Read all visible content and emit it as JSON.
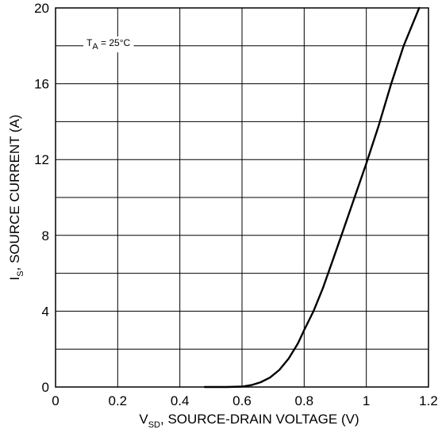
{
  "chart_data": {
    "type": "line",
    "xlabel": {
      "main": "V",
      "sub": "SD",
      "rest": ", SOURCE-DRAIN VOLTAGE (V)"
    },
    "ylabel": {
      "main": "I",
      "sub": "S",
      "rest": ", SOURCE CURRENT (A)"
    },
    "annotation": {
      "main": "T",
      "sub": "A",
      "rest": " = 25°C"
    },
    "xlim": [
      0,
      1.2
    ],
    "ylim": [
      0,
      20
    ],
    "x_ticks": [
      0,
      0.2,
      0.4,
      0.6,
      0.8,
      1,
      1.2
    ],
    "x_tick_labels": [
      "0",
      "0.2",
      "0.4",
      "0.6",
      "0.8",
      "1",
      "1.2"
    ],
    "y_ticks": [
      0,
      4,
      8,
      12,
      16,
      20
    ],
    "y_tick_labels": [
      "0",
      "4",
      "8",
      "12",
      "16",
      "20"
    ],
    "grid": true,
    "grid_x_step": 0.2,
    "grid_y_step": 2,
    "series": [
      {
        "x": [
          0.48,
          0.55,
          0.6,
          0.63,
          0.66,
          0.69,
          0.72,
          0.75,
          0.78,
          0.8,
          0.83,
          0.86,
          0.89,
          0.92,
          0.96,
          1.0,
          1.04,
          1.08,
          1.12,
          1.17
        ],
        "y": [
          0,
          0,
          0.02,
          0.1,
          0.25,
          0.5,
          0.9,
          1.5,
          2.3,
          3.0,
          4.0,
          5.2,
          6.6,
          8.0,
          9.9,
          11.8,
          13.8,
          16.0,
          18.0,
          20.0
        ]
      }
    ]
  }
}
